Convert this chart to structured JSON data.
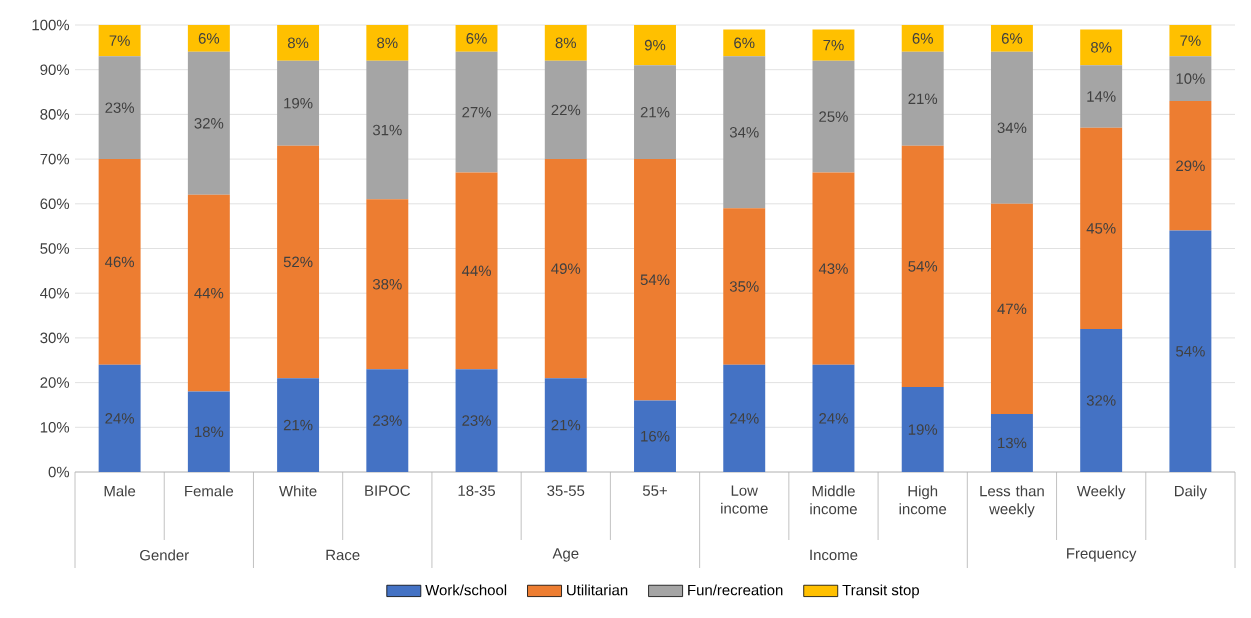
{
  "chart_data": {
    "type": "bar",
    "stacked": true,
    "grid": "y",
    "legend": "bottom",
    "categories": [
      "Male",
      "Female",
      "White",
      "BIPOC",
      "18-35",
      "35-55",
      "55+",
      "Low income",
      "Middle income",
      "High income",
      "Less than weekly",
      "Weekly",
      "Daily"
    ],
    "annotations": [
      "Gender",
      "Race",
      "Age",
      "Income",
      "Frequency"
    ],
    "ylim": [
      0,
      100
    ],
    "yticks": [
      {
        "value": 0,
        "label": "0%"
      },
      {
        "value": 10,
        "label": "10%"
      },
      {
        "value": 20,
        "label": "20%"
      },
      {
        "value": 30,
        "label": "30%"
      },
      {
        "value": 40,
        "label": "40%"
      },
      {
        "value": 50,
        "label": "50%"
      },
      {
        "value": 60,
        "label": "60%"
      },
      {
        "value": 70,
        "label": "70%"
      },
      {
        "value": 80,
        "label": "80%"
      },
      {
        "value": 90,
        "label": "90%"
      },
      {
        "value": 100,
        "label": "100%"
      }
    ],
    "series": [
      {
        "name": "Work/school",
        "color": "#4472c4",
        "values": [
          24,
          18,
          21,
          23,
          23,
          21,
          16,
          24,
          24,
          19,
          13,
          32,
          54
        ],
        "value_labels": [
          "24%",
          "18%",
          "21%",
          "23%",
          "23%",
          "21%",
          "16%",
          "24%",
          "24%",
          "19%",
          "13%",
          "32%",
          "54%"
        ]
      },
      {
        "name": "Utilitarian",
        "color": "#ed7d31",
        "values": [
          46,
          44,
          52,
          38,
          44,
          49,
          54,
          35,
          43,
          54,
          47,
          45,
          29
        ],
        "value_labels": [
          "46%",
          "44%",
          "52%",
          "38%",
          "44%",
          "49%",
          "54%",
          "35%",
          "43%",
          "54%",
          "47%",
          "45%",
          "29%"
        ]
      },
      {
        "name": "Fun/recreation",
        "color": "#a5a5a5",
        "values": [
          23,
          32,
          19,
          31,
          27,
          22,
          21,
          34,
          25,
          21,
          34,
          14,
          10
        ],
        "value_labels": [
          "23%",
          "32%",
          "19%",
          "31%",
          "27%",
          "22%",
          "21%",
          "34%",
          "25%",
          "21%",
          "34%",
          "14%",
          "10%"
        ]
      },
      {
        "name": "Transit stop",
        "color": "#ffc000",
        "values": [
          7,
          6,
          8,
          8,
          6,
          8,
          9,
          6,
          7,
          6,
          6,
          8,
          7
        ],
        "value_labels": [
          "7%",
          "6%",
          "8%",
          "8%",
          "6%",
          "8%",
          "9%",
          "6%",
          "7%",
          "6%",
          "6%",
          "8%",
          "7%"
        ]
      }
    ]
  }
}
